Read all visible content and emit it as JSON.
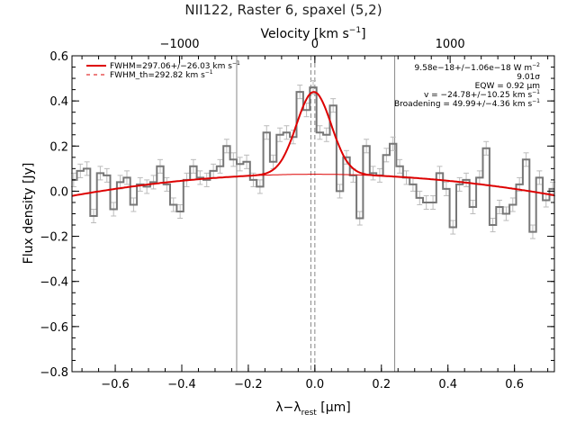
{
  "chart_data": {
    "type": "line",
    "title": "NII122, Raster 6, spaxel (5,2)",
    "xlabel_main": "λ−λ",
    "xlabel_sub": "rest",
    "xlabel_unit": " [μm]",
    "ylabel": "Flux density [Jy]",
    "top_xlabel": "Velocity [km s",
    "top_xlabel_sup": "−1",
    "top_xlabel_end": "]",
    "xlim": [
      -0.73,
      0.72
    ],
    "ylim": [
      -0.8,
      0.6
    ],
    "x_ticks": [
      -0.6,
      -0.4,
      -0.2,
      0.0,
      0.2,
      0.4,
      0.6
    ],
    "x_tick_labels": [
      "−0.6",
      "−0.4",
      "−0.2",
      "0.0",
      "0.2",
      "0.4",
      "0.6"
    ],
    "y_ticks": [
      -0.8,
      -0.6,
      -0.4,
      -0.2,
      0.0,
      0.2,
      0.4,
      0.6
    ],
    "y_tick_labels": [
      "−0.8",
      "−0.6",
      "−0.4",
      "−0.2",
      "0.0",
      "0.2",
      "0.4",
      "0.6"
    ],
    "top_ticks": [
      -1000,
      0,
      1000
    ],
    "top_tick_labels": [
      "−1000",
      "0",
      "1000"
    ],
    "vlines_solid": [
      -0.235,
      0.24
    ],
    "vlines_dashed": [
      -0.012,
      0.0
    ],
    "spectrum": {
      "name": "data",
      "x": [
        -0.725,
        -0.705,
        -0.685,
        -0.665,
        -0.645,
        -0.625,
        -0.605,
        -0.585,
        -0.565,
        -0.545,
        -0.525,
        -0.505,
        -0.485,
        -0.465,
        -0.445,
        -0.425,
        -0.405,
        -0.385,
        -0.365,
        -0.345,
        -0.325,
        -0.305,
        -0.285,
        -0.265,
        -0.245,
        -0.225,
        -0.205,
        -0.185,
        -0.165,
        -0.145,
        -0.125,
        -0.105,
        -0.085,
        -0.065,
        -0.045,
        -0.025,
        -0.005,
        0.015,
        0.035,
        0.055,
        0.075,
        0.095,
        0.115,
        0.135,
        0.155,
        0.175,
        0.195,
        0.215,
        0.235,
        0.255,
        0.275,
        0.295,
        0.315,
        0.335,
        0.355,
        0.375,
        0.395,
        0.415,
        0.435,
        0.455,
        0.475,
        0.495,
        0.515,
        0.535,
        0.555,
        0.575,
        0.595,
        0.615,
        0.635,
        0.655,
        0.675,
        0.695,
        0.715
      ],
      "y": [
        0.05,
        0.09,
        0.1,
        -0.11,
        0.08,
        0.07,
        -0.08,
        0.04,
        0.06,
        -0.06,
        0.03,
        0.02,
        0.04,
        0.11,
        0.03,
        -0.06,
        -0.09,
        0.05,
        0.11,
        0.06,
        0.05,
        0.09,
        0.11,
        0.2,
        0.14,
        0.12,
        0.13,
        0.05,
        0.02,
        0.26,
        0.13,
        0.25,
        0.26,
        0.24,
        0.44,
        0.36,
        0.46,
        0.26,
        0.25,
        0.38,
        0.0,
        0.15,
        0.07,
        -0.12,
        0.2,
        0.08,
        0.07,
        0.16,
        0.21,
        0.11,
        0.06,
        0.03,
        -0.03,
        -0.05,
        -0.05,
        0.08,
        0.01,
        -0.16,
        0.03,
        0.05,
        -0.07,
        0.06,
        0.19,
        -0.15,
        -0.07,
        -0.1,
        -0.06,
        0.03,
        0.14,
        -0.18,
        0.06,
        -0.04,
        0.01
      ],
      "err": 0.03
    },
    "fit": {
      "name": "fit",
      "baseline_a": 0.075,
      "baseline_b": 0.0,
      "baseline_c": -0.18,
      "gauss_amp": 0.365,
      "gauss_center": -0.003,
      "gauss_sigma": 0.052
    },
    "legend": [
      {
        "text": "FWHM=297.06+/−26.03 km s",
        "sup": "−1",
        "style": "solid"
      },
      {
        "text": "FWHM_th=292.82 km s",
        "sup": "−1",
        "style": "dashed"
      }
    ],
    "annotations": [
      {
        "text": "9.58e−18+/−1.06e−18 W m",
        "sup": "−2"
      },
      {
        "text": "9.01σ",
        "sup": ""
      },
      {
        "text": "EQW = 0.92 μm",
        "sup": ""
      },
      {
        "text": "v = −24.78+/−10.25 km s",
        "sup": "−1"
      },
      {
        "text": "Broadening = 49.99+/−4.36 km s",
        "sup": "−1"
      }
    ],
    "colors": {
      "data": "#777777",
      "error": "#bbbbbb",
      "fit": "#dd0000",
      "vline": "#888888",
      "axis": "#000000"
    },
    "grid": false,
    "legend_position": "top-left"
  }
}
